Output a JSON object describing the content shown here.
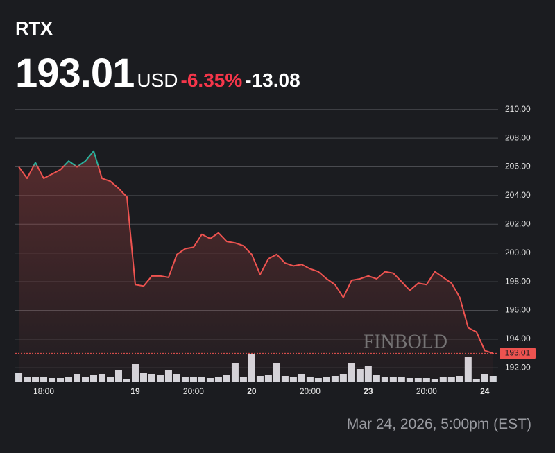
{
  "chart_data": {
    "type": "line",
    "ticker": "RTX",
    "price": 193.01,
    "currency": "USD",
    "change_pct": {
      "value": -6.35,
      "label": "-6.35%"
    },
    "change": -13.08,
    "footer": "Mar 24, 2026, 5:00pm (EST)",
    "watermark": "FINBOLD",
    "x": [
      0,
      1,
      2,
      3,
      4,
      5,
      6,
      7,
      8,
      9,
      10,
      11,
      12,
      13,
      14,
      15,
      16,
      17,
      18,
      19,
      20,
      21,
      22,
      23,
      24,
      25,
      26,
      27,
      28,
      29,
      30,
      31,
      32,
      33,
      34,
      35,
      36,
      37,
      38,
      39,
      40,
      41,
      42,
      43,
      44,
      45,
      46,
      47,
      48,
      49,
      50,
      51,
      52,
      53,
      54,
      55,
      56,
      57
    ],
    "series": [
      {
        "color": "#ee5350",
        "up_color": "#2ab09b",
        "values": [
          206.0,
          205.2,
          206.3,
          205.2,
          205.5,
          205.8,
          206.4,
          206.0,
          206.4,
          207.1,
          205.2,
          205.0,
          204.5,
          203.9,
          197.8,
          197.7,
          198.4,
          198.4,
          198.3,
          199.9,
          200.3,
          200.4,
          201.3,
          201.0,
          201.4,
          200.8,
          200.7,
          200.5,
          199.9,
          198.5,
          199.6,
          199.9,
          199.3,
          199.1,
          199.2,
          198.9,
          198.7,
          198.2,
          197.8,
          196.9,
          198.1,
          198.2,
          198.4,
          198.2,
          198.7,
          198.6,
          198.0,
          197.4,
          197.9,
          197.8,
          198.7,
          198.3,
          197.9,
          196.9,
          194.8,
          194.5,
          193.2,
          193.01
        ]
      }
    ],
    "volume": [
      12,
      7,
      6,
      7,
      5,
      5,
      6,
      11,
      6,
      9,
      11,
      6,
      16,
      4,
      25,
      13,
      11,
      9,
      17,
      11,
      7,
      6,
      6,
      5,
      7,
      10,
      27,
      7,
      40,
      8,
      9,
      27,
      8,
      7,
      11,
      6,
      5,
      6,
      8,
      11,
      27,
      18,
      22,
      10,
      7,
      6,
      6,
      5,
      5,
      5,
      4,
      6,
      7,
      8,
      36,
      3,
      11,
      8
    ],
    "volume_color": "#d4d6dc",
    "xlim": [
      -0.42,
      57.1
    ],
    "xticks": [
      {
        "value": 3,
        "label": "18:00"
      },
      {
        "value": 14,
        "label": "19"
      },
      {
        "value": 21,
        "label": "20:00"
      },
      {
        "value": 28,
        "label": "20"
      },
      {
        "value": 35,
        "label": "20:00"
      },
      {
        "value": 42,
        "label": "23"
      },
      {
        "value": 49,
        "label": "20:00"
      },
      {
        "value": 56,
        "label": "24"
      }
    ],
    "ylim": [
      191,
      211
    ],
    "yticks": [
      {
        "value": 192,
        "label": "192.00"
      },
      {
        "value": 194,
        "label": "194.00"
      },
      {
        "value": 196,
        "label": "196.00"
      },
      {
        "value": 198,
        "label": "198.00"
      },
      {
        "value": 200,
        "label": "200.00"
      },
      {
        "value": 202,
        "label": "202.00"
      },
      {
        "value": 204,
        "label": "204.00"
      },
      {
        "value": 206,
        "label": "206.00"
      },
      {
        "value": 208,
        "label": "208.00"
      },
      {
        "value": 210,
        "label": "210.00"
      }
    ],
    "grid": true
  }
}
